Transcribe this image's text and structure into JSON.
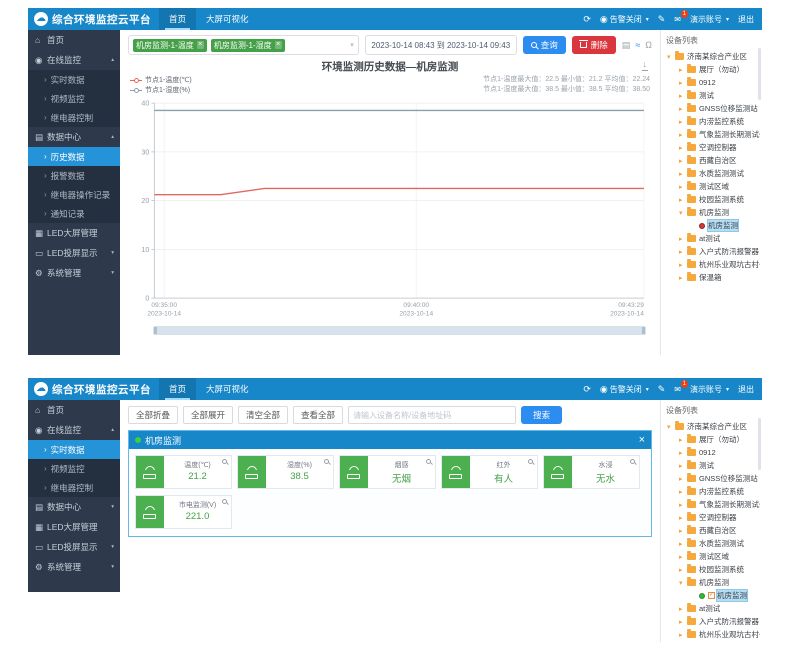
{
  "header": {
    "logo_title": "综合环境监控云平台",
    "nav": [
      {
        "label": "首页"
      },
      {
        "label": "大屏可视化"
      }
    ],
    "right": {
      "alarm_label": "告警关闭",
      "badge": "1",
      "account_label": "演示账号",
      "logout_label": "退出"
    }
  },
  "icons": {
    "cloud_logo": "☁",
    "refresh": "⟳",
    "alarm_bell": "◉",
    "theme_pen": "✎",
    "message": "✉",
    "data_view": "▤",
    "chart_type": "≈",
    "restore": "Ω",
    "download": "↓"
  },
  "sidebar1": {
    "items": [
      {
        "label": "首页",
        "cls": "top ic-home"
      },
      {
        "label": "在线监控",
        "cls": "top ic-monitor caret-up"
      },
      {
        "label": "实时数据",
        "cls": "sub"
      },
      {
        "label": "视频监控",
        "cls": "sub"
      },
      {
        "label": "继电器控制",
        "cls": "sub"
      },
      {
        "label": "数据中心",
        "cls": "top ic-data caret-up"
      },
      {
        "label": "历史数据",
        "cls": "sub active"
      },
      {
        "label": "报警数据",
        "cls": "sub"
      },
      {
        "label": "继电器操作记录",
        "cls": "sub"
      },
      {
        "label": "通知记录",
        "cls": "sub"
      },
      {
        "label": "LED大屏管理",
        "cls": "top ic-led"
      },
      {
        "label": "LED投屏显示",
        "cls": "top ic-cast caret-down"
      },
      {
        "label": "系统管理",
        "cls": "top ic-gear caret-down"
      }
    ]
  },
  "sidebar2": {
    "items": [
      {
        "label": "首页",
        "cls": "top ic-home"
      },
      {
        "label": "在线监控",
        "cls": "top ic-monitor caret-up"
      },
      {
        "label": "实时数据",
        "cls": "sub active"
      },
      {
        "label": "视频监控",
        "cls": "sub"
      },
      {
        "label": "继电器控制",
        "cls": "sub"
      },
      {
        "label": "数据中心",
        "cls": "top ic-data caret-down"
      },
      {
        "label": "LED大屏管理",
        "cls": "top ic-led"
      },
      {
        "label": "LED投屏显示",
        "cls": "top ic-cast caret-down"
      },
      {
        "label": "系统管理",
        "cls": "top ic-gear caret-down"
      }
    ]
  },
  "tree": {
    "panel_title": "设备列表",
    "items": [
      {
        "label": "济南某综合产业区",
        "cls": "lv0 folder open"
      },
      {
        "label": "展厅（勿动）",
        "cls": "lv1 folder closed"
      },
      {
        "label": "0912",
        "cls": "lv1 folder closed"
      },
      {
        "label": "测试",
        "cls": "lv1 folder closed"
      },
      {
        "label": "GNSS位移监测站",
        "cls": "lv1 folder closed"
      },
      {
        "label": "内涝监控系统",
        "cls": "lv1 folder closed"
      },
      {
        "label": "气象监测长期测试勿动",
        "cls": "lv1 folder closed"
      },
      {
        "label": "空调控制器",
        "cls": "lv1 folder closed"
      },
      {
        "label": "西藏自治区",
        "cls": "lv1 folder closed"
      },
      {
        "label": "水质监测测试",
        "cls": "lv1 folder closed"
      },
      {
        "label": "测试区域",
        "cls": "lv1 folder closed"
      },
      {
        "label": "校园监测系统",
        "cls": "lv1 folder closed"
      },
      {
        "label": "机房监测",
        "cls": "lv1 folder open"
      },
      {
        "label": "机房监测",
        "cls": "lv2 device selected"
      },
      {
        "label": "at测试",
        "cls": "lv1 folder closed"
      },
      {
        "label": "入户式防汛报警器",
        "cls": "lv1 folder closed"
      },
      {
        "label": "杭州乐业观坑古村一老杆",
        "cls": "lv1 folder closed"
      },
      {
        "label": "保温箱",
        "cls": "lv1 folder closed"
      }
    ]
  },
  "shot1": {
    "tags": [
      {
        "label": "机房监测-1-温度"
      },
      {
        "label": "机房监测-1-湿度"
      }
    ],
    "date_range": "2023-10-14 08:43 到 2023-10-14 09:43",
    "query_label": "查询",
    "delete_label": "删除"
  },
  "chart_data": {
    "type": "line",
    "title": "环境监测历史数据—机房监测",
    "ylim": [
      0,
      40
    ],
    "y_ticks": [
      0,
      10,
      20,
      30,
      40
    ],
    "x_ticks": [
      {
        "time": "09:35:00",
        "date": "2023-10-14",
        "fx": 0.02
      },
      {
        "time": "09:40:00",
        "date": "2023-10-14",
        "fx": 0.535
      },
      {
        "time": "09:43:29",
        "date": "2023-10-14",
        "fx": 1.0
      }
    ],
    "series": [
      {
        "name": "节点1-温度(℃)",
        "color": "#e0695f",
        "points": [
          [
            0,
            21.2
          ],
          [
            0.135,
            21.2
          ],
          [
            0.225,
            22.5
          ],
          [
            1,
            22.5
          ]
        ]
      },
      {
        "name": "节点1-湿度(%)",
        "color": "#8ba0ad",
        "points": [
          [
            0,
            38.5
          ],
          [
            1,
            38.5
          ]
        ]
      }
    ],
    "stats": [
      "节点1-温度最大值：22.5 最小值：21.2 平均值：22.24",
      "节点1-湿度最大值：38.5 最小值：38.5 平均值：38.50"
    ],
    "legend_position": "top-left",
    "grid": true
  },
  "shot2": {
    "toolbar": {
      "collapse_all": "全部折叠",
      "expand_all": "全部展开",
      "clear_all": "清空全部",
      "view_all": "查看全部",
      "search_placeholder": "请输入设备名称/设备地址码",
      "search_label": "搜索"
    },
    "panel": {
      "title": "机房监测",
      "cards": [
        {
          "label": "温度(℃)",
          "value": "21.2"
        },
        {
          "label": "湿度(%)",
          "value": "38.5"
        },
        {
          "label": "烟感",
          "value": "无烟"
        },
        {
          "label": "红外",
          "value": "有人"
        },
        {
          "label": "水浸",
          "value": "无水"
        },
        {
          "label": "市电监测(V)",
          "value": "221.0"
        }
      ]
    }
  },
  "colors": {
    "header_blue": "#1787c9",
    "sidebar_bg": "#2e3a4b",
    "sidebar_submenu_bg": "#24303f",
    "active_menu_blue": "#2593d7",
    "chip_green": "#44a148",
    "query_blue": "#2d8cf0",
    "delete_red": "#d9363e",
    "card_green": "#4caf50",
    "value_green": "#43a047",
    "folder_orange": "#f5a93c",
    "selected_node_bg": "#b5ddf3",
    "temp_series": "#e0695f",
    "humidity_series": "#8ba0ad"
  }
}
